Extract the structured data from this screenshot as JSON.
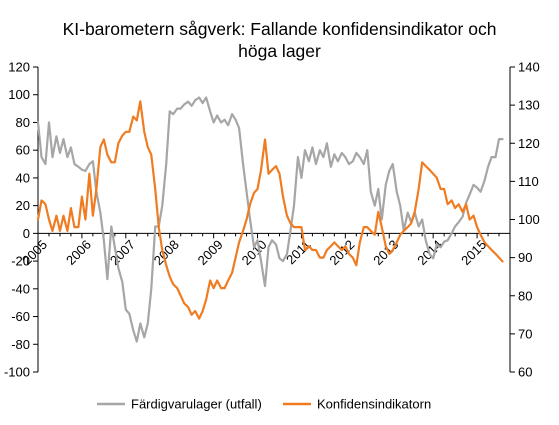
{
  "chart_data": {
    "type": "line",
    "title_lines": [
      "KI-barometern sågverk: Fallande konfidensindikator och",
      "höga lager"
    ],
    "x_range": [
      2005.0,
      2015.75
    ],
    "y_left": {
      "min": -100,
      "max": 120,
      "step": 20,
      "ticks": [
        "120",
        "100",
        "80",
        "60",
        "40",
        "20",
        "0",
        "-20",
        "-40",
        "-60",
        "-80",
        "-100"
      ]
    },
    "y_right": {
      "min": 60,
      "max": 140,
      "step": 10,
      "ticks": [
        "140",
        "130",
        "120",
        "110",
        "100",
        "90",
        "80",
        "70",
        "60"
      ]
    },
    "year_labels": [
      "2005",
      "2006",
      "2007",
      "2008",
      "2009",
      "2010",
      "2011",
      "2012",
      "2013",
      "2014",
      "2015"
    ],
    "grid": false,
    "legend_position": "bottom",
    "series": [
      {
        "name": "Färdigvarulager (utfall)",
        "axis": "left",
        "color": "#a6a6a6",
        "points": [
          [
            2005.0,
            80
          ],
          [
            2005.08,
            55
          ],
          [
            2005.17,
            50
          ],
          [
            2005.25,
            80
          ],
          [
            2005.33,
            55
          ],
          [
            2005.42,
            70
          ],
          [
            2005.5,
            58
          ],
          [
            2005.58,
            68
          ],
          [
            2005.67,
            55
          ],
          [
            2005.75,
            62
          ],
          [
            2005.83,
            50
          ],
          [
            2005.92,
            48
          ],
          [
            2006.0,
            46
          ],
          [
            2006.08,
            45
          ],
          [
            2006.17,
            50
          ],
          [
            2006.25,
            52
          ],
          [
            2006.33,
            30
          ],
          [
            2006.42,
            15
          ],
          [
            2006.5,
            -5
          ],
          [
            2006.58,
            -33
          ],
          [
            2006.67,
            5
          ],
          [
            2006.75,
            -10
          ],
          [
            2006.83,
            -25
          ],
          [
            2006.92,
            -35
          ],
          [
            2007.0,
            -55
          ],
          [
            2007.08,
            -58
          ],
          [
            2007.17,
            -70
          ],
          [
            2007.25,
            -78
          ],
          [
            2007.33,
            -65
          ],
          [
            2007.42,
            -75
          ],
          [
            2007.5,
            -65
          ],
          [
            2007.58,
            -40
          ],
          [
            2007.67,
            5
          ],
          [
            2007.75,
            5
          ],
          [
            2007.83,
            20
          ],
          [
            2007.92,
            50
          ],
          [
            2008.0,
            88
          ],
          [
            2008.08,
            86
          ],
          [
            2008.17,
            90
          ],
          [
            2008.25,
            90
          ],
          [
            2008.33,
            93
          ],
          [
            2008.42,
            95
          ],
          [
            2008.5,
            92
          ],
          [
            2008.58,
            96
          ],
          [
            2008.67,
            98
          ],
          [
            2008.75,
            94
          ],
          [
            2008.83,
            98
          ],
          [
            2008.92,
            88
          ],
          [
            2009.0,
            80
          ],
          [
            2009.08,
            85
          ],
          [
            2009.17,
            80
          ],
          [
            2009.25,
            82
          ],
          [
            2009.33,
            78
          ],
          [
            2009.42,
            86
          ],
          [
            2009.5,
            82
          ],
          [
            2009.58,
            76
          ],
          [
            2009.67,
            50
          ],
          [
            2009.75,
            30
          ],
          [
            2009.83,
            10
          ],
          [
            2009.92,
            -10
          ],
          [
            2010.0,
            -5
          ],
          [
            2010.08,
            -20
          ],
          [
            2010.17,
            -38
          ],
          [
            2010.25,
            -10
          ],
          [
            2010.33,
            -5
          ],
          [
            2010.42,
            -8
          ],
          [
            2010.5,
            -18
          ],
          [
            2010.58,
            -20
          ],
          [
            2010.67,
            -15
          ],
          [
            2010.75,
            2
          ],
          [
            2010.83,
            20
          ],
          [
            2010.92,
            55
          ],
          [
            2011.0,
            40
          ],
          [
            2011.08,
            60
          ],
          [
            2011.17,
            52
          ],
          [
            2011.25,
            62
          ],
          [
            2011.33,
            50
          ],
          [
            2011.42,
            60
          ],
          [
            2011.5,
            55
          ],
          [
            2011.58,
            65
          ],
          [
            2011.67,
            48
          ],
          [
            2011.75,
            57
          ],
          [
            2011.83,
            52
          ],
          [
            2011.92,
            58
          ],
          [
            2012.0,
            55
          ],
          [
            2012.08,
            50
          ],
          [
            2012.17,
            52
          ],
          [
            2012.25,
            58
          ],
          [
            2012.33,
            55
          ],
          [
            2012.42,
            50
          ],
          [
            2012.5,
            60
          ],
          [
            2012.58,
            30
          ],
          [
            2012.67,
            20
          ],
          [
            2012.75,
            32
          ],
          [
            2012.83,
            10
          ],
          [
            2012.92,
            35
          ],
          [
            2013.0,
            45
          ],
          [
            2013.08,
            50
          ],
          [
            2013.17,
            30
          ],
          [
            2013.25,
            20
          ],
          [
            2013.33,
            2
          ],
          [
            2013.42,
            15
          ],
          [
            2013.5,
            8
          ],
          [
            2013.58,
            15
          ],
          [
            2013.67,
            5
          ],
          [
            2013.75,
            10
          ],
          [
            2013.83,
            -5
          ],
          [
            2013.92,
            -15
          ],
          [
            2014.0,
            -18
          ],
          [
            2014.08,
            -8
          ],
          [
            2014.17,
            -10
          ],
          [
            2014.25,
            -6
          ],
          [
            2014.33,
            -5
          ],
          [
            2014.42,
            0
          ],
          [
            2014.5,
            5
          ],
          [
            2014.58,
            8
          ],
          [
            2014.67,
            12
          ],
          [
            2014.75,
            22
          ],
          [
            2014.83,
            28
          ],
          [
            2014.92,
            35
          ],
          [
            2015.0,
            33
          ],
          [
            2015.08,
            30
          ],
          [
            2015.17,
            38
          ],
          [
            2015.25,
            48
          ],
          [
            2015.33,
            55
          ],
          [
            2015.42,
            55
          ],
          [
            2015.5,
            68
          ],
          [
            2015.58,
            68
          ]
        ]
      },
      {
        "name": "Konfidensindikatorn",
        "axis": "right",
        "color": "#f07c22",
        "points": [
          [
            2005.0,
            100
          ],
          [
            2005.08,
            105
          ],
          [
            2005.17,
            104
          ],
          [
            2005.25,
            100
          ],
          [
            2005.33,
            97
          ],
          [
            2005.42,
            101
          ],
          [
            2005.5,
            97
          ],
          [
            2005.58,
            101
          ],
          [
            2005.67,
            97
          ],
          [
            2005.75,
            103
          ],
          [
            2005.83,
            98
          ],
          [
            2005.92,
            98
          ],
          [
            2006.0,
            106
          ],
          [
            2006.08,
            100
          ],
          [
            2006.17,
            112
          ],
          [
            2006.25,
            101
          ],
          [
            2006.33,
            108
          ],
          [
            2006.42,
            119
          ],
          [
            2006.5,
            121
          ],
          [
            2006.58,
            117
          ],
          [
            2006.67,
            115
          ],
          [
            2006.75,
            115
          ],
          [
            2006.83,
            120
          ],
          [
            2006.92,
            122
          ],
          [
            2007.0,
            123
          ],
          [
            2007.08,
            123
          ],
          [
            2007.17,
            127
          ],
          [
            2007.25,
            126
          ],
          [
            2007.33,
            131
          ],
          [
            2007.42,
            123
          ],
          [
            2007.5,
            119
          ],
          [
            2007.58,
            117
          ],
          [
            2007.67,
            108
          ],
          [
            2007.75,
            98
          ],
          [
            2007.83,
            92
          ],
          [
            2007.92,
            88
          ],
          [
            2008.0,
            85
          ],
          [
            2008.08,
            83
          ],
          [
            2008.17,
            82
          ],
          [
            2008.25,
            80
          ],
          [
            2008.33,
            78
          ],
          [
            2008.42,
            77
          ],
          [
            2008.5,
            75
          ],
          [
            2008.58,
            76
          ],
          [
            2008.67,
            74
          ],
          [
            2008.75,
            76
          ],
          [
            2008.83,
            79
          ],
          [
            2008.92,
            84
          ],
          [
            2009.0,
            82
          ],
          [
            2009.08,
            84
          ],
          [
            2009.17,
            82
          ],
          [
            2009.25,
            82
          ],
          [
            2009.33,
            84
          ],
          [
            2009.42,
            86
          ],
          [
            2009.5,
            90
          ],
          [
            2009.58,
            94
          ],
          [
            2009.67,
            97
          ],
          [
            2009.75,
            100
          ],
          [
            2009.83,
            104
          ],
          [
            2009.92,
            107
          ],
          [
            2010.0,
            108
          ],
          [
            2010.08,
            113
          ],
          [
            2010.17,
            121
          ],
          [
            2010.25,
            112
          ],
          [
            2010.33,
            113
          ],
          [
            2010.42,
            114
          ],
          [
            2010.5,
            112
          ],
          [
            2010.58,
            106
          ],
          [
            2010.67,
            101
          ],
          [
            2010.75,
            99
          ],
          [
            2010.83,
            98
          ],
          [
            2010.92,
            98
          ],
          [
            2011.0,
            98
          ],
          [
            2011.08,
            92
          ],
          [
            2011.17,
            93
          ],
          [
            2011.25,
            92
          ],
          [
            2011.33,
            92
          ],
          [
            2011.42,
            90
          ],
          [
            2011.5,
            90
          ],
          [
            2011.58,
            92
          ],
          [
            2011.67,
            93
          ],
          [
            2011.75,
            94
          ],
          [
            2011.83,
            93
          ],
          [
            2011.92,
            92
          ],
          [
            2012.0,
            93
          ],
          [
            2012.08,
            91
          ],
          [
            2012.17,
            90
          ],
          [
            2012.25,
            88
          ],
          [
            2012.33,
            94
          ],
          [
            2012.42,
            98
          ],
          [
            2012.5,
            98
          ],
          [
            2012.58,
            97
          ],
          [
            2012.67,
            96
          ],
          [
            2012.75,
            102
          ],
          [
            2012.83,
            98
          ],
          [
            2012.92,
            93
          ],
          [
            2013.0,
            91
          ],
          [
            2013.08,
            92
          ],
          [
            2013.17,
            94
          ],
          [
            2013.25,
            96
          ],
          [
            2013.33,
            97
          ],
          [
            2013.42,
            98
          ],
          [
            2013.5,
            99
          ],
          [
            2013.58,
            102
          ],
          [
            2013.67,
            108
          ],
          [
            2013.75,
            115
          ],
          [
            2013.83,
            114
          ],
          [
            2013.92,
            113
          ],
          [
            2014.0,
            112
          ],
          [
            2014.08,
            111
          ],
          [
            2014.17,
            108
          ],
          [
            2014.25,
            108
          ],
          [
            2014.33,
            104
          ],
          [
            2014.42,
            105
          ],
          [
            2014.5,
            103
          ],
          [
            2014.58,
            104
          ],
          [
            2014.67,
            102
          ],
          [
            2014.75,
            104
          ],
          [
            2014.83,
            100
          ],
          [
            2014.92,
            101
          ],
          [
            2015.0,
            98
          ],
          [
            2015.08,
            96
          ],
          [
            2015.17,
            94
          ],
          [
            2015.25,
            93
          ],
          [
            2015.33,
            92
          ],
          [
            2015.42,
            91
          ],
          [
            2015.5,
            90
          ],
          [
            2015.58,
            89
          ]
        ]
      }
    ]
  }
}
